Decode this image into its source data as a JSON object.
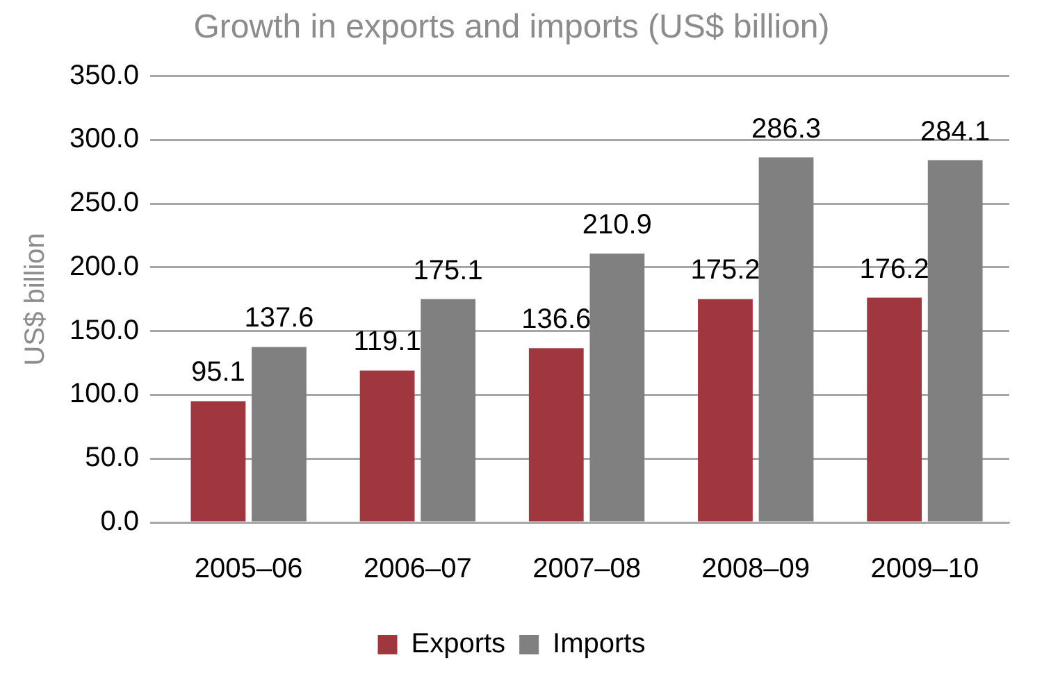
{
  "chart_data": {
    "type": "bar",
    "title": "Growth in exports and imports (US$ billion)",
    "ylabel": "US$ billion",
    "categories": [
      "2005–06",
      "2006–07",
      "2007–08",
      "2008–09",
      "2009–10"
    ],
    "series": [
      {
        "name": "Exports",
        "color": "#a0373e",
        "values": [
          95.1,
          119.1,
          136.6,
          175.2,
          176.2
        ]
      },
      {
        "name": "Imports",
        "color": "#808080",
        "values": [
          137.6,
          175.1,
          210.9,
          286.3,
          284.1
        ]
      }
    ],
    "ylim": [
      0,
      350
    ],
    "yticks": [
      {
        "value": 0,
        "label": "0.0"
      },
      {
        "value": 50,
        "label": "50.0"
      },
      {
        "value": 100,
        "label": "100.0"
      },
      {
        "value": 150,
        "label": "150.0"
      },
      {
        "value": 200,
        "label": "200.0"
      },
      {
        "value": 250,
        "label": "250.0"
      },
      {
        "value": 300,
        "label": "300.0"
      },
      {
        "value": 350,
        "label": "350.0"
      }
    ],
    "grid": "y",
    "legend": "bottom",
    "data_labels": true
  }
}
